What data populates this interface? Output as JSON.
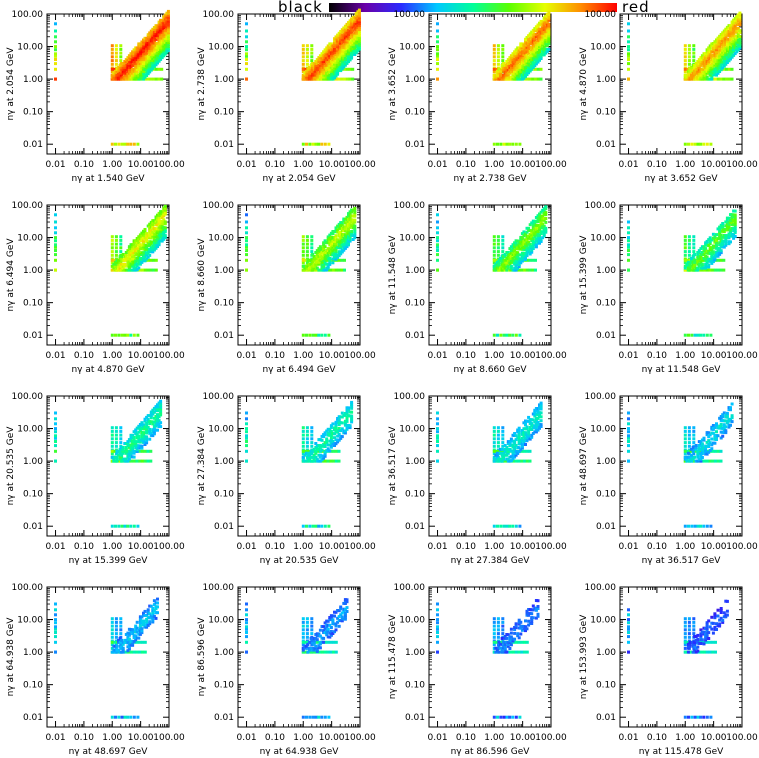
{
  "colorbar": {
    "low_label": "black",
    "high_label": "red",
    "colors": [
      "#000000",
      "#6a00a8",
      "#2a2aff",
      "#00c8ff",
      "#00ff9a",
      "#5aff00",
      "#e6ff00",
      "#ff8c00",
      "#ff0000"
    ]
  },
  "chart_data": {
    "type": "heatmap",
    "scale": "log",
    "xlim": [
      0.005,
      100
    ],
    "ylim": [
      0.005,
      100
    ],
    "tick_values": [
      0.01,
      0.1,
      1,
      10,
      100
    ],
    "tick_labels": [
      "0.01",
      "0.10",
      "1.00",
      "10.00",
      "100.00"
    ],
    "axis_prefix": "n",
    "axis_symbol": "γ",
    "axis_word": "at",
    "unit": "GeV",
    "energies": [
      "1.540",
      "2.054",
      "2.738",
      "3.652",
      "4.870",
      "6.494",
      "8.660",
      "11.548",
      "15.399",
      "20.535",
      "27.384",
      "36.517",
      "48.697",
      "64.938",
      "86.596",
      "115.478",
      "153.993"
    ],
    "panels": [
      {
        "x_energy": "1.540",
        "y_energy": "2.054",
        "intensity": 1.0
      },
      {
        "x_energy": "2.054",
        "y_energy": "2.738",
        "intensity": 0.95
      },
      {
        "x_energy": "2.738",
        "y_energy": "3.652",
        "intensity": 0.9
      },
      {
        "x_energy": "3.652",
        "y_energy": "4.870",
        "intensity": 0.85
      },
      {
        "x_energy": "4.870",
        "y_energy": "6.494",
        "intensity": 0.72
      },
      {
        "x_energy": "6.494",
        "y_energy": "8.660",
        "intensity": 0.66
      },
      {
        "x_energy": "8.660",
        "y_energy": "11.548",
        "intensity": 0.6
      },
      {
        "x_energy": "11.548",
        "y_energy": "15.399",
        "intensity": 0.55
      },
      {
        "x_energy": "15.399",
        "y_energy": "20.535",
        "intensity": 0.45
      },
      {
        "x_energy": "20.535",
        "y_energy": "27.384",
        "intensity": 0.42
      },
      {
        "x_energy": "27.384",
        "y_energy": "36.517",
        "intensity": 0.38
      },
      {
        "x_energy": "36.517",
        "y_energy": "48.697",
        "intensity": 0.34
      },
      {
        "x_energy": "48.697",
        "y_energy": "64.938",
        "intensity": 0.28
      },
      {
        "x_energy": "64.938",
        "y_energy": "86.596",
        "intensity": 0.24
      },
      {
        "x_energy": "86.596",
        "y_energy": "115.478",
        "intensity": 0.2
      },
      {
        "x_energy": "115.478",
        "y_energy": "153.993",
        "intensity": 0.16
      }
    ]
  }
}
